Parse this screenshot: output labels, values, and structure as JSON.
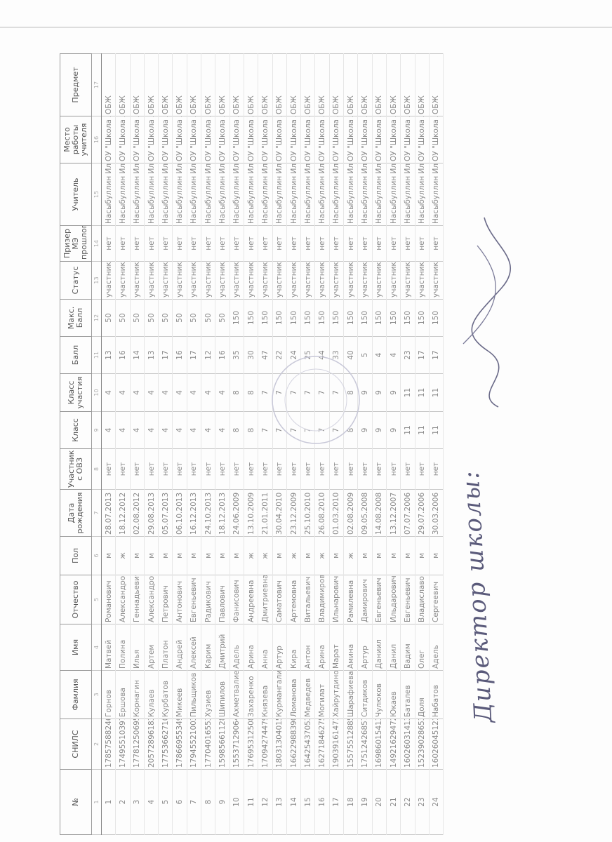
{
  "headers": [
    {
      "label": "№",
      "num": "1"
    },
    {
      "label": "СНИЛС",
      "num": "2"
    },
    {
      "label": "Фамлия",
      "num": "3"
    },
    {
      "label": "Имя",
      "num": "4"
    },
    {
      "label": "Отчество",
      "num": "5"
    },
    {
      "label": "Пол",
      "num": "6"
    },
    {
      "label": "Дата рождения",
      "num": "7"
    },
    {
      "label": "Участник с ОВЗ",
      "num": "8"
    },
    {
      "label": "Класс",
      "num": "9"
    },
    {
      "label": "Класс участия",
      "num": "10"
    },
    {
      "label": "Балл",
      "num": "11"
    },
    {
      "label": "Макс. Балл",
      "num": "12"
    },
    {
      "label": "Статус",
      "num": "13"
    },
    {
      "label": "Призер МЭ прошлог",
      "num": "14"
    },
    {
      "label": "Учитель",
      "num": "15"
    },
    {
      "label": "Место работы учителя",
      "num": "16"
    },
    {
      "label": "Предмет",
      "num": "17"
    }
  ],
  "rows": [
    [
      "1",
      "17857588246",
      "Горнов",
      "Матвей",
      "Романович",
      "м",
      "28.07.2013",
      "нет",
      "4",
      "4",
      "13",
      "50",
      "участник",
      "нет",
      "Насыбуллин Иль",
      "ОУ \"Школа №",
      "ОБЖ"
    ],
    [
      "2",
      "17495510397",
      "Ершова",
      "Полина",
      "Александровн",
      "ж",
      "18.12.2012",
      "нет",
      "4",
      "4",
      "16",
      "50",
      "участник",
      "нет",
      "Насыбуллин Иль",
      "ОУ \"Школа №",
      "ОБЖ"
    ],
    [
      "3",
      "17781250695",
      "Корнагин",
      "Илья",
      "Геннадьевич",
      "м",
      "02.08.2012",
      "нет",
      "4",
      "4",
      "14",
      "50",
      "участник",
      "нет",
      "Насыбуллин Иль",
      "ОУ \"Школа №",
      "ОБЖ"
    ],
    [
      "4",
      "20572896183",
      "Кулаев",
      "Артем",
      "Александрович",
      "м",
      "29.08.2013",
      "нет",
      "4",
      "4",
      "13",
      "50",
      "участник",
      "нет",
      "Насыбуллин Иль",
      "ОУ \"Школа №",
      "ОБЖ"
    ],
    [
      "5",
      "17753662710",
      "Курбатов",
      "Платон",
      "Петрович",
      "м",
      "05.07.2013",
      "нет",
      "4",
      "4",
      "17",
      "50",
      "участник",
      "нет",
      "Насыбуллин Иль",
      "ОУ \"Школа №",
      "ОБЖ"
    ],
    [
      "6",
      "17866955349",
      "Микеев",
      "Андрей",
      "Антонович",
      "м",
      "06.10.2013",
      "нет",
      "4",
      "4",
      "16",
      "50",
      "участник",
      "нет",
      "Насыбуллин Иль",
      "ОУ \"Школа №",
      "ОБЖ"
    ],
    [
      "7",
      "17945521003",
      "Пильщиков",
      "Алексей",
      "Евгеньевич",
      "м",
      "16.12.2013",
      "нет",
      "4",
      "4",
      "17",
      "50",
      "участник",
      "нет",
      "Насыбуллин Иль",
      "ОУ \"Школа №",
      "ОБЖ"
    ],
    [
      "8",
      "17704016553",
      "Хузиев",
      "Карим",
      "Радикович",
      "м",
      "24.10.2013",
      "нет",
      "4",
      "4",
      "12",
      "50",
      "участник",
      "нет",
      "Насыбуллин Иль",
      "ОУ \"Школа №",
      "ОБЖ"
    ],
    [
      "9",
      "15985661128",
      "Шипилов",
      "Дмитрий",
      "Павлович",
      "м",
      "18.12.2013",
      "нет",
      "4",
      "4",
      "16",
      "50",
      "участник",
      "нет",
      "Насыбуллин Иль",
      "ОУ \"Школа №",
      "ОБЖ"
    ],
    [
      "10",
      "15537129064",
      "Ахметвалиев",
      "Адель",
      "Фанисович",
      "м",
      "24.06.2009",
      "нет",
      "8",
      "8",
      "35",
      "150",
      "участник",
      "нет",
      "Насыбуллин Иль",
      "ОУ \"Школа №",
      "ОБЖ"
    ],
    [
      "11",
      "17695312508",
      "Захаренко",
      "Арина",
      "Андреевна",
      "ж",
      "13.10.2009",
      "нет",
      "8",
      "8",
      "30",
      "150",
      "участник",
      "нет",
      "Насыбуллин Иль",
      "ОУ \"Школа №",
      "ОБЖ"
    ],
    [
      "12",
      "17094274479",
      "Князева",
      "Анна",
      "Дмитриевна",
      "ж",
      "21.01.2011",
      "нет",
      "7",
      "7",
      "47",
      "150",
      "участник",
      "нет",
      "Насыбуллин Иль",
      "ОУ \"Школа №",
      "ОБЖ"
    ],
    [
      "13",
      "18031304015",
      "Курмангалиев",
      "Артур",
      "Саматович",
      "м",
      "30.04.2010",
      "нет",
      "7",
      "7",
      "22",
      "150",
      "участник",
      "нет",
      "Насыбуллин Иль",
      "ОУ \"Школа №",
      "ОБЖ"
    ],
    [
      "14",
      "16622988390",
      "Ломанова",
      "Кира",
      "Артемовна",
      "ж",
      "23.12.2009",
      "нет",
      "7",
      "7",
      "24",
      "150",
      "участник",
      "нет",
      "Насыбуллин Иль",
      "ОУ \"Школа №",
      "ОБЖ"
    ],
    [
      "15",
      "16425437053",
      "Медведев",
      "Антон",
      "Витальевич",
      "м",
      "25.10.2010",
      "нет",
      "7",
      "7",
      "25",
      "150",
      "участник",
      "нет",
      "Насыбуллин Иль",
      "ОУ \"Школа №",
      "ОБЖ"
    ],
    [
      "16",
      "16271846275",
      "Могилат",
      "Арина",
      "Владимировн",
      "ж",
      "26.08.2010",
      "нет",
      "7",
      "7",
      "44",
      "150",
      "участник",
      "нет",
      "Насыбуллин Иль",
      "ОУ \"Школа №",
      "ОБЖ"
    ],
    [
      "17",
      "19039161471",
      "Хайрутдинов",
      "Марат",
      "Ильнарович",
      "м",
      "01.03.2010",
      "нет",
      "7",
      "7",
      "33",
      "150",
      "участник",
      "нет",
      "Насыбуллин Иль",
      "ОУ \"Школа №",
      "ОБЖ"
    ],
    [
      "18",
      "15575512885",
      "Шарафиева",
      "Амина",
      "Рамилевна",
      "ж",
      "02.08.2009",
      "нет",
      "8",
      "8",
      "40",
      "150",
      "участник",
      "нет",
      "Насыбуллин Иль",
      "ОУ \"Школа №",
      "ОБЖ"
    ],
    [
      "19",
      "17512426857",
      "Ситдиков",
      "Артур",
      "Дамирович",
      "м",
      "09.05.2008",
      "нет",
      "9",
      "9",
      "5",
      "150",
      "участник",
      "нет",
      "Насыбуллин Иль",
      "ОУ \"Школа №",
      "ОБЖ"
    ],
    [
      "20",
      "16986015413",
      "Чулюков",
      "Даниил",
      "Евгеньевич",
      "м",
      "14.08.2008",
      "нет",
      "9",
      "9",
      "4",
      "150",
      "участник",
      "нет",
      "Насыбуллин Иль",
      "ОУ \"Школа №",
      "ОБЖ"
    ],
    [
      "21",
      "14921629472",
      "Юкаев",
      "Данил",
      "Ильдарович",
      "м",
      "13.12.2007",
      "нет",
      "9",
      "9",
      "4",
      "150",
      "участник",
      "нет",
      "Насыбуллин Иль",
      "ОУ \"Школа №",
      "ОБЖ"
    ],
    [
      "22",
      "16026031413",
      "Баталев",
      "Вадим",
      "Евгеньевич",
      "м",
      "07.07.2006",
      "нет",
      "11",
      "11",
      "23",
      "150",
      "участник",
      "нет",
      "Насыбуллин Иль",
      "ОУ \"Школа №",
      "ОБЖ"
    ],
    [
      "23",
      "15239028653",
      "Доля",
      "Олег",
      "Владиславови",
      "м",
      "29.07.2006",
      "нет",
      "11",
      "11",
      "17",
      "150",
      "участник",
      "нет",
      "Насыбуллин Иль",
      "ОУ \"Школа №",
      "ОБЖ"
    ],
    [
      "24",
      "16026045121",
      "Набатов",
      "Адель",
      "Сергеевич",
      "м",
      "30.03.2006",
      "нет",
      "11",
      "11",
      "17",
      "150",
      "участник",
      "нет",
      "Насыбуллин Иль",
      "ОУ \"Школа №",
      "ОБЖ"
    ]
  ],
  "signature": {
    "text": "Директор школы:"
  },
  "colors": {
    "grid": "#9a9a9a",
    "text": "#8a8a8a",
    "ink": "#555577"
  }
}
